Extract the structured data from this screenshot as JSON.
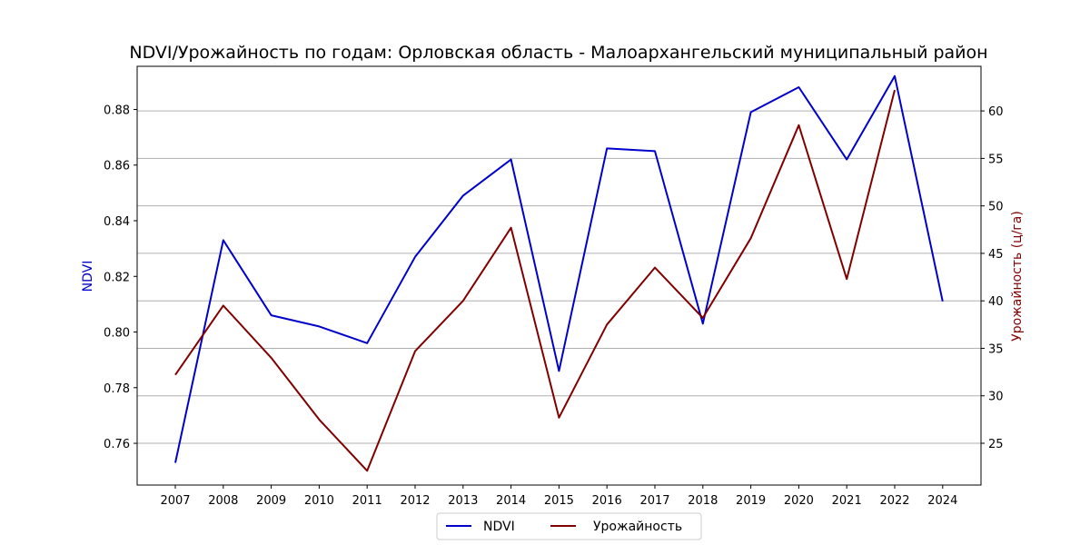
{
  "chart_data": {
    "type": "line",
    "title": "NDVI/Урожайность по годам: Орловская область - Малоархангельский муниципальный район",
    "xlabel": "",
    "x": [
      "2007",
      "2008",
      "2009",
      "2010",
      "2011",
      "2012",
      "2013",
      "2014",
      "2015",
      "2016",
      "2017",
      "2018",
      "2019",
      "2020",
      "2021",
      "2022",
      "2024"
    ],
    "y_left": {
      "label": "NDVI",
      "color": "#0000cc",
      "ylim": [
        0.745,
        0.8955
      ],
      "ticks": [
        "0.76",
        "0.78",
        "0.80",
        "0.82",
        "0.84",
        "0.86",
        "0.88"
      ]
    },
    "y_right": {
      "label": "Урожайность (ц/га)",
      "color": "#800000",
      "ylim": [
        20.6,
        64.7
      ],
      "ticks": [
        "25",
        "30",
        "35",
        "40",
        "45",
        "50",
        "55",
        "60"
      ]
    },
    "grid": "horizontal (right axis)",
    "legend_position": "bottom-center",
    "series": [
      {
        "name": "NDVI",
        "axis": "left",
        "color": "#0000cc",
        "x": [
          "2007",
          "2008",
          "2009",
          "2010",
          "2011",
          "2012",
          "2013",
          "2014",
          "2015",
          "2016",
          "2017",
          "2018",
          "2019",
          "2020",
          "2021",
          "2022",
          "2024"
        ],
        "values": [
          0.753,
          0.833,
          0.806,
          0.802,
          0.796,
          0.827,
          0.849,
          0.862,
          0.786,
          0.866,
          0.865,
          0.803,
          0.879,
          0.888,
          0.862,
          0.892,
          0.811
        ]
      },
      {
        "name": "Урожайность",
        "axis": "right",
        "color": "#800000",
        "x": [
          "2007",
          "2008",
          "2009",
          "2010",
          "2011",
          "2012",
          "2013",
          "2014",
          "2015",
          "2016",
          "2017",
          "2018",
          "2019",
          "2020",
          "2021",
          "2022"
        ],
        "values": [
          32.2,
          39.5,
          34.0,
          27.5,
          22.1,
          34.7,
          40.0,
          47.7,
          27.7,
          37.5,
          43.5,
          38.2,
          46.6,
          58.5,
          42.3,
          62.2
        ]
      }
    ]
  }
}
